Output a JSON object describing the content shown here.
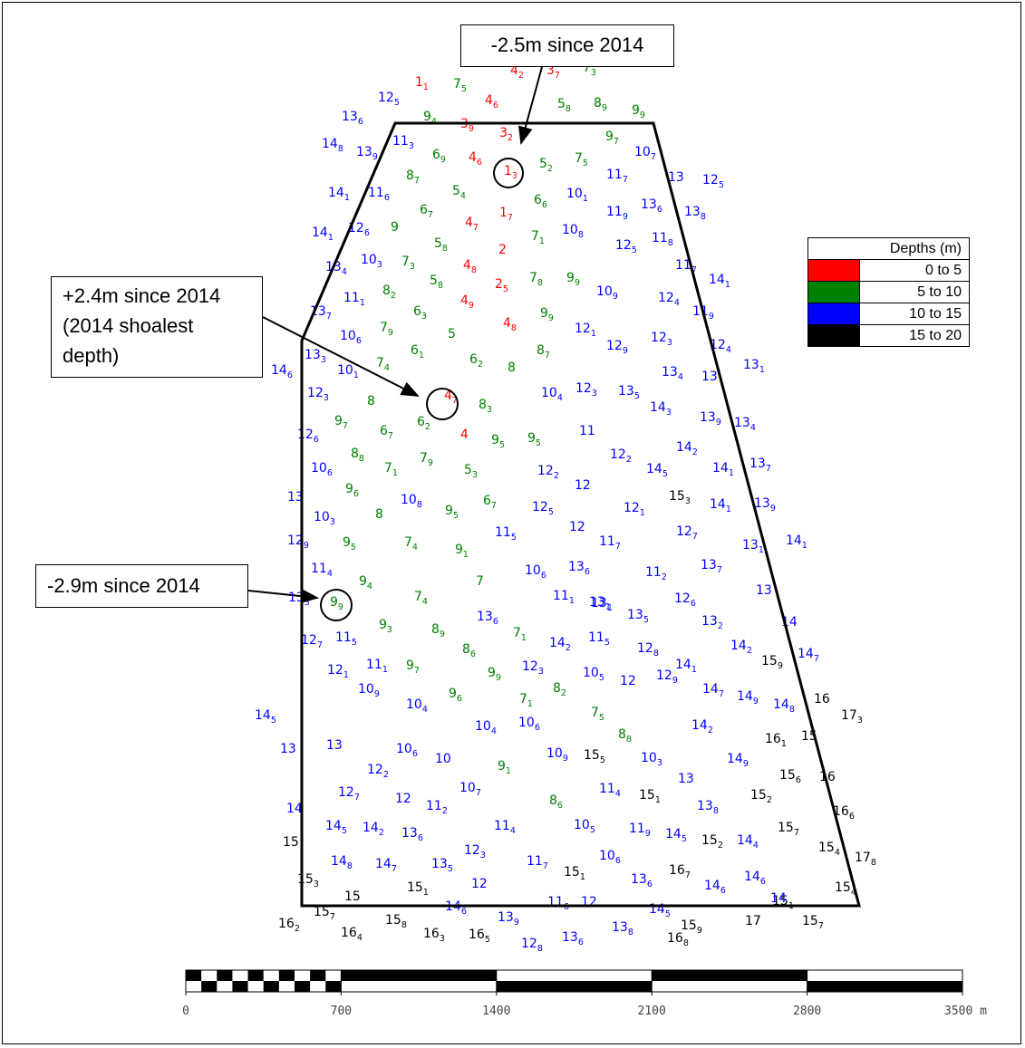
{
  "callouts": [
    {
      "text": "-2.5m since 2014"
    },
    {
      "text": "+2.4m since 2014\n(2014 shoalest\ndepth)"
    },
    {
      "text": "-2.9m since 2014"
    }
  ],
  "legend": {
    "title": "Depths (m)",
    "items": [
      {
        "label": "0 to 5",
        "color": "#ff0000"
      },
      {
        "label": "5 to 10",
        "color": "#008000"
      },
      {
        "label": "10 to 15",
        "color": "#0000ff"
      },
      {
        "label": "15 to 20",
        "color": "#000000"
      }
    ]
  },
  "scale_bar": {
    "ticks": [
      "0",
      "700",
      "1400",
      "2100",
      "2800",
      "3500 m"
    ]
  },
  "soundings": [
    [
      "1",
      "1",
      "2"
    ],
    [
      "7",
      "5",
      ""
    ],
    [
      "4",
      "2",
      ""
    ],
    [
      "3",
      "7",
      ""
    ],
    [
      "7",
      "3",
      ""
    ],
    [
      "12",
      "5",
      ""
    ],
    [
      "4",
      "6",
      ""
    ],
    [
      "5",
      "8",
      ""
    ],
    [
      "8",
      "9",
      ""
    ],
    [
      "9",
      "9",
      ""
    ],
    [
      "13",
      "6",
      ""
    ],
    [
      "9",
      "4",
      ""
    ],
    [
      "3",
      "9",
      ""
    ],
    [
      "3",
      "2",
      ""
    ],
    [
      "9",
      "7",
      ""
    ],
    [
      "14",
      "8",
      ""
    ],
    [
      "13",
      "9",
      ""
    ],
    [
      "11",
      "3",
      ""
    ],
    [
      "6",
      "9",
      ""
    ],
    [
      "4",
      "6",
      ""
    ],
    [
      "1",
      "3",
      ""
    ],
    [
      "5",
      "2",
      ""
    ],
    [
      "7",
      "5",
      ""
    ],
    [
      "10",
      "7",
      ""
    ],
    [
      "11",
      "7",
      ""
    ],
    [
      "8",
      "7",
      ""
    ],
    [
      "13",
      "",
      ""
    ],
    [
      "12",
      "5",
      ""
    ],
    [
      "14",
      "1",
      ""
    ],
    [
      "11",
      "6",
      ""
    ],
    [
      "5",
      "4",
      ""
    ],
    [
      "6",
      "6",
      ""
    ],
    [
      "10",
      "1",
      ""
    ],
    [
      "6",
      "7",
      ""
    ],
    [
      "1",
      "7",
      ""
    ],
    [
      "11",
      "9",
      ""
    ],
    [
      "13",
      "6",
      ""
    ],
    [
      "13",
      "8",
      ""
    ],
    [
      "14",
      "1",
      ""
    ],
    [
      "12",
      "6",
      ""
    ],
    [
      "9",
      "",
      ""
    ],
    [
      "4",
      "7",
      ""
    ],
    [
      "7",
      "1",
      ""
    ],
    [
      "10",
      "8",
      ""
    ],
    [
      "11",
      "8",
      ""
    ],
    [
      "5",
      "8",
      ""
    ],
    [
      "12",
      "5",
      ""
    ],
    [
      "2",
      "",
      ""
    ],
    [
      "10",
      "3",
      ""
    ],
    [
      "7",
      "3",
      ""
    ],
    [
      "4",
      "8",
      ""
    ],
    [
      "13",
      "4",
      ""
    ],
    [
      "11",
      "7",
      ""
    ],
    [
      "5",
      "8",
      ""
    ],
    [
      "7",
      "8",
      ""
    ],
    [
      "9",
      "9",
      ""
    ],
    [
      "14",
      "1",
      ""
    ],
    [
      "8",
      "2",
      ""
    ],
    [
      "2",
      "5",
      ""
    ],
    [
      "10",
      "9",
      ""
    ],
    [
      "11",
      "1",
      ""
    ],
    [
      "4",
      "9",
      ""
    ],
    [
      "12",
      "4",
      ""
    ],
    [
      "6",
      "3",
      ""
    ],
    [
      "9",
      "9",
      ""
    ],
    [
      "13",
      "7",
      ""
    ],
    [
      "11",
      "9",
      ""
    ],
    [
      "10",
      "6",
      ""
    ],
    [
      "7",
      "9",
      ""
    ],
    [
      "5",
      "",
      ""
    ],
    [
      "4",
      "8",
      ""
    ],
    [
      "12",
      "1",
      ""
    ],
    [
      "12",
      "3",
      ""
    ],
    [
      "12",
      "9",
      ""
    ],
    [
      "8",
      "7",
      ""
    ],
    [
      "6",
      "1",
      ""
    ],
    [
      "13",
      "3",
      ""
    ],
    [
      "12",
      "4",
      ""
    ],
    [
      "14",
      "6",
      ""
    ],
    [
      "7",
      "4",
      ""
    ],
    [
      "6",
      "2",
      ""
    ],
    [
      "8",
      "",
      ""
    ],
    [
      "13",
      "1",
      ""
    ],
    [
      "10",
      "1",
      ""
    ],
    [
      "13",
      "4",
      ""
    ],
    [
      "13",
      "",
      ""
    ],
    [
      "12",
      "3",
      ""
    ],
    [
      "4",
      "7",
      ""
    ],
    [
      "10",
      "4",
      ""
    ],
    [
      "12",
      "3",
      ""
    ],
    [
      "13",
      "5",
      ""
    ],
    [
      "8",
      "",
      ""
    ],
    [
      "8",
      "3",
      ""
    ],
    [
      "14",
      "3",
      ""
    ],
    [
      "13",
      "9",
      ""
    ],
    [
      "13",
      "4",
      ""
    ],
    [
      "9",
      "7",
      ""
    ],
    [
      "6",
      "7",
      ""
    ],
    [
      "6",
      "2",
      ""
    ],
    [
      "11",
      "",
      ""
    ],
    [
      "12",
      "6",
      ""
    ],
    [
      "4",
      "",
      ""
    ],
    [
      "9",
      "5",
      ""
    ],
    [
      "9",
      "5",
      ""
    ],
    [
      "14",
      "2",
      ""
    ],
    [
      "8",
      "8",
      ""
    ],
    [
      "12",
      "2",
      ""
    ],
    [
      "13",
      "7",
      ""
    ],
    [
      "10",
      "6",
      ""
    ],
    [
      "7",
      "1",
      ""
    ],
    [
      "7",
      "9",
      ""
    ],
    [
      "5",
      "3",
      ""
    ],
    [
      "12",
      "2",
      ""
    ],
    [
      "14",
      "5",
      ""
    ],
    [
      "14",
      "1",
      ""
    ],
    [
      "9",
      "6",
      ""
    ],
    [
      "12",
      "",
      ""
    ],
    [
      "15",
      "3",
      ""
    ],
    [
      "13",
      "",
      ""
    ],
    [
      "10",
      "8",
      ""
    ],
    [
      "6",
      "7",
      ""
    ],
    [
      "12",
      "5",
      ""
    ],
    [
      "12",
      "1",
      ""
    ],
    [
      "14",
      "1",
      ""
    ],
    [
      "13",
      "9",
      ""
    ],
    [
      "10",
      "3",
      ""
    ],
    [
      "8",
      "",
      ""
    ],
    [
      "9",
      "5",
      ""
    ],
    [
      "11",
      "5",
      ""
    ],
    [
      "12",
      "",
      ""
    ],
    [
      "12",
      "7",
      ""
    ],
    [
      "12",
      "9",
      ""
    ],
    [
      "9",
      "5",
      ""
    ],
    [
      "7",
      "4",
      ""
    ],
    [
      "9",
      "1",
      ""
    ],
    [
      "11",
      "7",
      ""
    ],
    [
      "13",
      "1",
      ""
    ],
    [
      "14",
      "1",
      ""
    ],
    [
      "11",
      "4",
      ""
    ],
    [
      "10",
      "6",
      ""
    ],
    [
      "13",
      "6",
      ""
    ],
    [
      "11",
      "2",
      ""
    ],
    [
      "13",
      "7",
      ""
    ],
    [
      "9",
      "4",
      ""
    ],
    [
      "7",
      "",
      ""
    ],
    [
      "13",
      "3",
      ""
    ],
    [
      "9",
      "9",
      ""
    ],
    [
      "7",
      "4",
      ""
    ],
    [
      "11",
      "1",
      ""
    ],
    [
      "13",
      "1",
      ""
    ],
    [
      "12",
      "6",
      ""
    ],
    [
      "13",
      "",
      ""
    ],
    [
      "13",
      "5",
      ""
    ],
    [
      "13",
      "6",
      ""
    ],
    [
      "9",
      "3",
      ""
    ],
    [
      "8",
      "9",
      ""
    ],
    [
      "13",
      "2",
      ""
    ],
    [
      "14",
      ""
    ],
    [
      "12",
      "7",
      ""
    ],
    [
      "11",
      "5",
      ""
    ],
    [
      "7",
      "1",
      ""
    ],
    [
      "14",
      "2",
      ""
    ],
    [
      "11",
      "5",
      ""
    ],
    [
      "12",
      "8",
      ""
    ],
    [
      "8",
      "6",
      ""
    ],
    [
      "14",
      "2",
      ""
    ],
    [
      "15",
      "9",
      ""
    ],
    [
      "14",
      "7",
      ""
    ],
    [
      "11",
      "1",
      ""
    ],
    [
      "9",
      "7",
      ""
    ],
    [
      "12",
      "3",
      ""
    ],
    [
      "14",
      "1",
      ""
    ],
    [
      "9",
      "9",
      ""
    ],
    [
      "10",
      "5",
      ""
    ],
    [
      "12",
      "",
      ""
    ],
    [
      "13",
      "1",
      ""
    ],
    [
      "12",
      "1",
      ""
    ],
    [
      "9",
      "6",
      ""
    ],
    [
      "8",
      "2",
      ""
    ],
    [
      "12",
      "9",
      ""
    ],
    [
      "14",
      "7",
      ""
    ],
    [
      "14",
      "9",
      ""
    ],
    [
      "16",
      "",
      ""
    ],
    [
      "14",
      "5",
      ""
    ],
    [
      "7",
      "5",
      ""
    ],
    [
      "10",
      "9",
      ""
    ],
    [
      "10",
      "4",
      ""
    ],
    [
      "7",
      "1",
      ""
    ],
    [
      "14",
      "8",
      ""
    ],
    [
      "17",
      "3",
      ""
    ],
    [
      "10",
      "4",
      ""
    ],
    [
      "10",
      "6",
      ""
    ],
    [
      "14",
      "2",
      ""
    ],
    [
      "13",
      "",
      ""
    ],
    [
      "13",
      "",
      ""
    ],
    [
      "8",
      "8",
      ""
    ],
    [
      "16",
      "1",
      ""
    ],
    [
      "15",
      "",
      ""
    ],
    [
      "10",
      "6",
      ""
    ],
    [
      "10",
      "",
      ""
    ],
    [
      "9",
      "1",
      ""
    ],
    [
      "10",
      "9",
      ""
    ],
    [
      "15",
      "5",
      ""
    ],
    [
      "10",
      "3",
      ""
    ],
    [
      "14",
      "9",
      ""
    ],
    [
      "12",
      "2",
      ""
    ],
    [
      "13",
      "",
      ""
    ],
    [
      "15",
      "6",
      ""
    ],
    [
      "16",
      "",
      ""
    ],
    [
      "12",
      "7",
      ""
    ],
    [
      "10",
      "7",
      ""
    ],
    [
      "11",
      "4",
      ""
    ],
    [
      "15",
      "1",
      ""
    ],
    [
      "15",
      "2",
      ""
    ],
    [
      "12",
      "",
      ""
    ],
    [
      "11",
      "2",
      ""
    ],
    [
      "8",
      "6",
      ""
    ],
    [
      "13",
      "8",
      ""
    ],
    [
      "14",
      "",
      ""
    ],
    [
      "16",
      "6",
      ""
    ],
    [
      "14",
      "5",
      ""
    ],
    [
      "14",
      "2",
      ""
    ],
    [
      "13",
      "6",
      ""
    ],
    [
      "11",
      "4",
      ""
    ],
    [
      "10",
      "5",
      ""
    ],
    [
      "11",
      "9",
      ""
    ],
    [
      "14",
      "5",
      ""
    ],
    [
      "15",
      "7",
      ""
    ],
    [
      "15",
      "",
      ""
    ],
    [
      "12",
      "3",
      ""
    ],
    [
      "15",
      "2",
      ""
    ],
    [
      "14",
      "4",
      ""
    ],
    [
      "15",
      "4",
      ""
    ],
    [
      "17",
      "8",
      ""
    ],
    [
      "14",
      "8",
      ""
    ],
    [
      "14",
      "7",
      ""
    ],
    [
      "13",
      "5",
      ""
    ],
    [
      "10",
      "6",
      ""
    ],
    [
      "11",
      "7",
      ""
    ],
    [
      "15",
      "1",
      ""
    ],
    [
      "15",
      "1",
      ""
    ],
    [
      "16",
      "7",
      ""
    ],
    [
      "14",
      "6",
      ""
    ],
    [
      "14",
      "6",
      ""
    ],
    [
      "15",
      "3",
      ""
    ],
    [
      "12",
      "",
      ""
    ],
    [
      "13",
      "6",
      ""
    ],
    [
      "15",
      "1",
      ""
    ],
    [
      "15",
      "",
      ""
    ],
    [
      "15",
      "4",
      ""
    ],
    [
      "14",
      "6",
      ""
    ],
    [
      "11",
      "6",
      ""
    ],
    [
      "12",
      "",
      ""
    ],
    [
      "14",
      "5",
      ""
    ],
    [
      "14",
      "",
      ""
    ],
    [
      "16",
      "2",
      ""
    ],
    [
      "15",
      "7",
      ""
    ],
    [
      "15",
      "8",
      ""
    ],
    [
      "13",
      "9",
      ""
    ],
    [
      "13",
      "8",
      ""
    ],
    [
      "15",
      "9",
      ""
    ],
    [
      "17",
      "",
      ""
    ],
    [
      "15",
      "7",
      ""
    ],
    [
      "16",
      "4",
      ""
    ],
    [
      "16",
      "3",
      ""
    ],
    [
      "16",
      "5",
      ""
    ],
    [
      "12",
      "8",
      ""
    ],
    [
      "13",
      "6",
      ""
    ],
    [
      "16",
      "8",
      ""
    ]
  ]
}
